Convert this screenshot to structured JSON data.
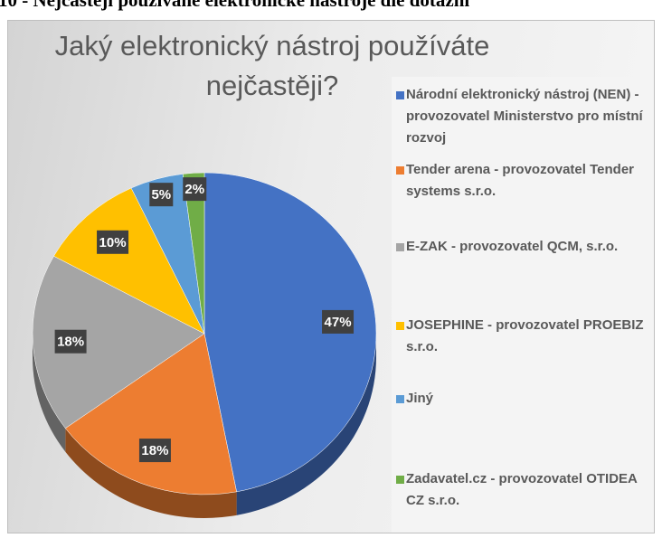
{
  "caption": "10 - Nejčastěji používané elektronické nástroje dle dotazní",
  "chart_data": {
    "type": "pie",
    "title": "Jaký elektronický nástroj používáte nejčastěji?",
    "categories": [
      "Národní elektronický nástroj (NEN) - provozovatel Ministerstvo pro místní rozvoj",
      "Tender arena - provozovatel Tender systems s.r.o.",
      "E-ZAK - provozovatel QCM, s.r.o.",
      "JOSEPHINE - provozovatel PROEBIZ s.r.o.",
      "Jiný",
      "Zadavatel.cz - provozovatel OTIDEA CZ s.r.o."
    ],
    "values": [
      47,
      18,
      18,
      10,
      5,
      2
    ],
    "value_labels": [
      "47%",
      "18%",
      "18%",
      "10%",
      "5%",
      "2%"
    ],
    "colors": [
      "#4472c4",
      "#ed7d31",
      "#a5a5a5",
      "#ffc000",
      "#5b9bd5",
      "#70ad47"
    ],
    "legend": "right"
  }
}
